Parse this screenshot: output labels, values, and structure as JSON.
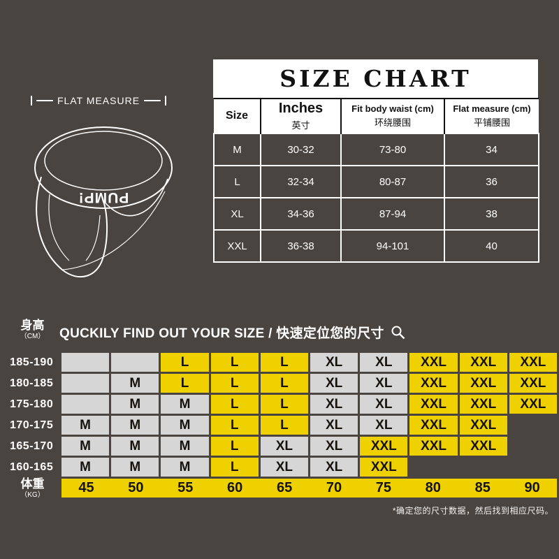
{
  "colors": {
    "background": "#4a4440",
    "yellow": "#efd100",
    "cell_gray": "#d6d6d6",
    "table_text": "#111111",
    "white": "#ffffff"
  },
  "flat_measure_label": "FLAT MEASURE",
  "brand": "PUMP!",
  "size_chart": {
    "title": "SIZE CHART",
    "columns": [
      {
        "en": "Size",
        "zh": ""
      },
      {
        "en": "Inches",
        "zh": "英寸"
      },
      {
        "en": "Fit body waist (cm)",
        "zh": "环绕腰围"
      },
      {
        "en": "Flat measure (cm)",
        "zh": "平铺腰围"
      }
    ],
    "rows": [
      [
        "M",
        "30-32",
        "73-80",
        "34"
      ],
      [
        "L",
        "32-34",
        "80-87",
        "36"
      ],
      [
        "XL",
        "34-36",
        "87-94",
        "38"
      ],
      [
        "XXL",
        "36-38",
        "94-101",
        "40"
      ]
    ]
  },
  "finder": {
    "title": "QUCKILY FIND OUT YOUR SIZE / 快速定位您的尺寸",
    "height_axis": {
      "zh": "身高",
      "unit": "（CM）"
    },
    "weight_axis": {
      "zh": "体重",
      "unit": "（KG）"
    },
    "weights": [
      "45",
      "50",
      "55",
      "60",
      "65",
      "70",
      "75",
      "80",
      "85",
      "90"
    ],
    "rows": [
      {
        "height": "185-190",
        "cells": [
          "",
          "",
          "L",
          "L",
          "L",
          "XL",
          "XL",
          "XXL",
          "XXL",
          "XXL"
        ]
      },
      {
        "height": "180-185",
        "cells": [
          "",
          "M",
          "L",
          "L",
          "L",
          "XL",
          "XL",
          "XXL",
          "XXL",
          "XXL"
        ]
      },
      {
        "height": "175-180",
        "cells": [
          "",
          "M",
          "M",
          "L",
          "L",
          "XL",
          "XL",
          "XXL",
          "XXL",
          "XXL"
        ]
      },
      {
        "height": "170-175",
        "cells": [
          "M",
          "M",
          "M",
          "L",
          "L",
          "XL",
          "XL",
          "XXL",
          "XXL",
          null
        ]
      },
      {
        "height": "165-170",
        "cells": [
          "M",
          "M",
          "M",
          "L",
          "XL",
          "XL",
          "XXL",
          "XXL",
          "XXL",
          null
        ]
      },
      {
        "height": "160-165",
        "cells": [
          "M",
          "M",
          "M",
          "L",
          "XL",
          "XL",
          "XXL",
          null,
          null,
          null
        ]
      }
    ],
    "footnote": "*确定您的尺寸数据，然后找到相应尺码。"
  },
  "chart_data": [
    {
      "type": "table",
      "title": "SIZE CHART",
      "columns": [
        "Size",
        "Inches 英寸",
        "Fit body waist (cm) 环绕腰围",
        "Flat measure (cm) 平铺腰围"
      ],
      "rows": [
        [
          "M",
          "30-32",
          "73-80",
          "34"
        ],
        [
          "L",
          "32-34",
          "80-87",
          "36"
        ],
        [
          "XL",
          "34-36",
          "87-94",
          "38"
        ],
        [
          "XXL",
          "36-38",
          "94-101",
          "40"
        ]
      ]
    },
    {
      "type": "table",
      "title": "QUCKILY FIND OUT YOUR SIZE / 快速定位您的尺寸",
      "xlabel": "体重（KG）",
      "ylabel": "身高（CM）",
      "columns": [
        "45",
        "50",
        "55",
        "60",
        "65",
        "70",
        "75",
        "80",
        "85",
        "90"
      ],
      "row_labels": [
        "185-190",
        "180-185",
        "175-180",
        "170-175",
        "165-170",
        "160-165"
      ],
      "rows": [
        [
          "",
          "",
          "L",
          "L",
          "L",
          "XL",
          "XL",
          "XXL",
          "XXL",
          "XXL"
        ],
        [
          "",
          "M",
          "L",
          "L",
          "L",
          "XL",
          "XL",
          "XXL",
          "XXL",
          "XXL"
        ],
        [
          "",
          "M",
          "M",
          "L",
          "L",
          "XL",
          "XL",
          "XXL",
          "XXL",
          "XXL"
        ],
        [
          "M",
          "M",
          "M",
          "L",
          "L",
          "XL",
          "XL",
          "XXL",
          "XXL",
          null
        ],
        [
          "M",
          "M",
          "M",
          "L",
          "XL",
          "XL",
          "XXL",
          "XXL",
          "XXL",
          null
        ],
        [
          "M",
          "M",
          "M",
          "L",
          "XL",
          "XL",
          "XXL",
          null,
          null,
          null
        ]
      ]
    }
  ]
}
